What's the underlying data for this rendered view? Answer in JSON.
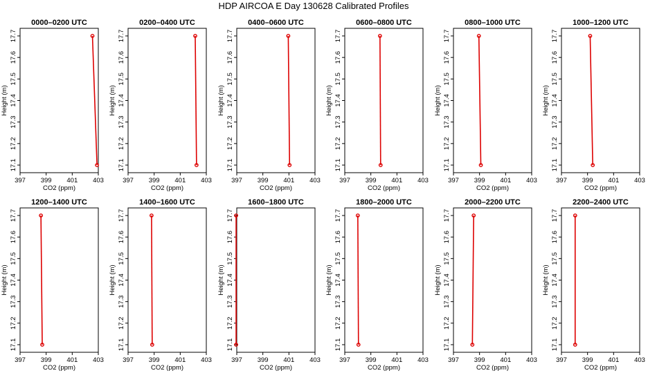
{
  "title": "HDP AIRCOA E  Day 130628  Calibrated Profiles",
  "chart_data": [
    {
      "type": "line",
      "title": "0000–0200 UTC",
      "xlabel": "CO2 (ppm)",
      "ylabel": "Height (m)",
      "xlim": [
        397,
        403
      ],
      "ylim": [
        17.1,
        17.7
      ],
      "xticks": [
        "397",
        "399",
        "401",
        "403"
      ],
      "yticks": [
        "17.1",
        "17.2",
        "17.3",
        "17.4",
        "17.5",
        "17.6",
        "17.7"
      ],
      "series": [
        {
          "x": [
            402.55,
            402.9
          ],
          "y": [
            17.7,
            17.1
          ]
        }
      ]
    },
    {
      "type": "line",
      "title": "0200–0400 UTC",
      "xlabel": "CO2 (ppm)",
      "ylabel": "Height (m)",
      "xlim": [
        397,
        403
      ],
      "ylim": [
        17.1,
        17.7
      ],
      "xticks": [
        "397",
        "399",
        "401",
        "403"
      ],
      "yticks": [
        "17.1",
        "17.2",
        "17.3",
        "17.4",
        "17.5",
        "17.6",
        "17.7"
      ],
      "series": [
        {
          "x": [
            402.15,
            402.25
          ],
          "y": [
            17.7,
            17.1
          ]
        }
      ]
    },
    {
      "type": "line",
      "title": "0400–0600 UTC",
      "xlabel": "CO2 (ppm)",
      "ylabel": "Height (m)",
      "xlim": [
        397,
        403
      ],
      "ylim": [
        17.1,
        17.7
      ],
      "xticks": [
        "397",
        "399",
        "401",
        "403"
      ],
      "yticks": [
        "17.1",
        "17.2",
        "17.3",
        "17.4",
        "17.5",
        "17.6",
        "17.7"
      ],
      "series": [
        {
          "x": [
            400.95,
            401.05
          ],
          "y": [
            17.7,
            17.1
          ]
        }
      ]
    },
    {
      "type": "line",
      "title": "0600–0800 UTC",
      "xlabel": "CO2 (ppm)",
      "ylabel": "Height (m)",
      "xlim": [
        397,
        403
      ],
      "ylim": [
        17.1,
        17.7
      ],
      "xticks": [
        "397",
        "399",
        "401",
        "403"
      ],
      "yticks": [
        "17.1",
        "17.2",
        "17.3",
        "17.4",
        "17.5",
        "17.6",
        "17.7"
      ],
      "series": [
        {
          "x": [
            399.7,
            399.75
          ],
          "y": [
            17.7,
            17.1
          ]
        }
      ]
    },
    {
      "type": "line",
      "title": "0800–1000 UTC",
      "xlabel": "CO2 (ppm)",
      "ylabel": "Height (m)",
      "xlim": [
        397,
        403
      ],
      "ylim": [
        17.1,
        17.7
      ],
      "xticks": [
        "397",
        "399",
        "401",
        "403"
      ],
      "yticks": [
        "17.1",
        "17.2",
        "17.3",
        "17.4",
        "17.5",
        "17.6",
        "17.7"
      ],
      "series": [
        {
          "x": [
            398.95,
            399.1
          ],
          "y": [
            17.7,
            17.1
          ]
        }
      ]
    },
    {
      "type": "line",
      "title": "1000–1200 UTC",
      "xlabel": "CO2 (ppm)",
      "ylabel": "Height (m)",
      "xlim": [
        397,
        403
      ],
      "ylim": [
        17.1,
        17.7
      ],
      "xticks": [
        "397",
        "399",
        "401",
        "403"
      ],
      "yticks": [
        "17.1",
        "17.2",
        "17.3",
        "17.4",
        "17.5",
        "17.6",
        "17.7"
      ],
      "series": [
        {
          "x": [
            399.2,
            399.4
          ],
          "y": [
            17.7,
            17.1
          ]
        }
      ]
    },
    {
      "type": "line",
      "title": "1200–1400 UTC",
      "xlabel": "CO2 (ppm)",
      "ylabel": "Height (m)",
      "xlim": [
        397,
        403
      ],
      "ylim": [
        17.1,
        17.7
      ],
      "xticks": [
        "397",
        "399",
        "401",
        "403"
      ],
      "yticks": [
        "17.1",
        "17.2",
        "17.3",
        "17.4",
        "17.5",
        "17.6",
        "17.7"
      ],
      "series": [
        {
          "x": [
            398.6,
            398.7
          ],
          "y": [
            17.7,
            17.1
          ]
        }
      ]
    },
    {
      "type": "line",
      "title": "1400–1600 UTC",
      "xlabel": "CO2 (ppm)",
      "ylabel": "Height (m)",
      "xlim": [
        397,
        403
      ],
      "ylim": [
        17.1,
        17.7
      ],
      "xticks": [
        "397",
        "399",
        "401",
        "403"
      ],
      "yticks": [
        "17.1",
        "17.2",
        "17.3",
        "17.4",
        "17.5",
        "17.6",
        "17.7"
      ],
      "series": [
        {
          "x": [
            398.8,
            398.85
          ],
          "y": [
            17.7,
            17.1
          ]
        }
      ]
    },
    {
      "type": "line",
      "title": "1600–1800 UTC",
      "xlabel": "CO2 (ppm)",
      "ylabel": "Height (m)",
      "xlim": [
        397,
        403
      ],
      "ylim": [
        17.1,
        17.7
      ],
      "xticks": [
        "397",
        "399",
        "401",
        "403"
      ],
      "yticks": [
        "17.1",
        "17.2",
        "17.3",
        "17.4",
        "17.5",
        "17.6",
        "17.7"
      ],
      "series": [
        {
          "x": [
            396.95,
            396.95
          ],
          "y": [
            17.7,
            17.1
          ]
        }
      ]
    },
    {
      "type": "line",
      "title": "1800–2000 UTC",
      "xlabel": "CO2 (ppm)",
      "ylabel": "Height (m)",
      "xlim": [
        397,
        403
      ],
      "ylim": [
        17.1,
        17.7
      ],
      "xticks": [
        "397",
        "399",
        "401",
        "403"
      ],
      "yticks": [
        "17.1",
        "17.2",
        "17.3",
        "17.4",
        "17.5",
        "17.6",
        "17.7"
      ],
      "series": [
        {
          "x": [
            398.0,
            398.05
          ],
          "y": [
            17.7,
            17.1
          ]
        }
      ]
    },
    {
      "type": "line",
      "title": "2000–2200 UTC",
      "xlabel": "CO2 (ppm)",
      "ylabel": "Height (m)",
      "xlim": [
        397,
        403
      ],
      "ylim": [
        17.1,
        17.7
      ],
      "xticks": [
        "397",
        "399",
        "401",
        "403"
      ],
      "yticks": [
        "17.1",
        "17.2",
        "17.3",
        "17.4",
        "17.5",
        "17.6",
        "17.7"
      ],
      "series": [
        {
          "x": [
            398.55,
            398.45
          ],
          "y": [
            17.7,
            17.1
          ]
        }
      ]
    },
    {
      "type": "line",
      "title": "2200–2400 UTC",
      "xlabel": "CO2 (ppm)",
      "ylabel": "Height (m)",
      "xlim": [
        397,
        403
      ],
      "ylim": [
        17.1,
        17.7
      ],
      "xticks": [
        "397",
        "399",
        "401",
        "403"
      ],
      "yticks": [
        "17.1",
        "17.2",
        "17.3",
        "17.4",
        "17.5",
        "17.6",
        "17.7"
      ],
      "series": [
        {
          "x": [
            398.05,
            398.05
          ],
          "y": [
            17.7,
            17.1
          ]
        }
      ]
    }
  ]
}
